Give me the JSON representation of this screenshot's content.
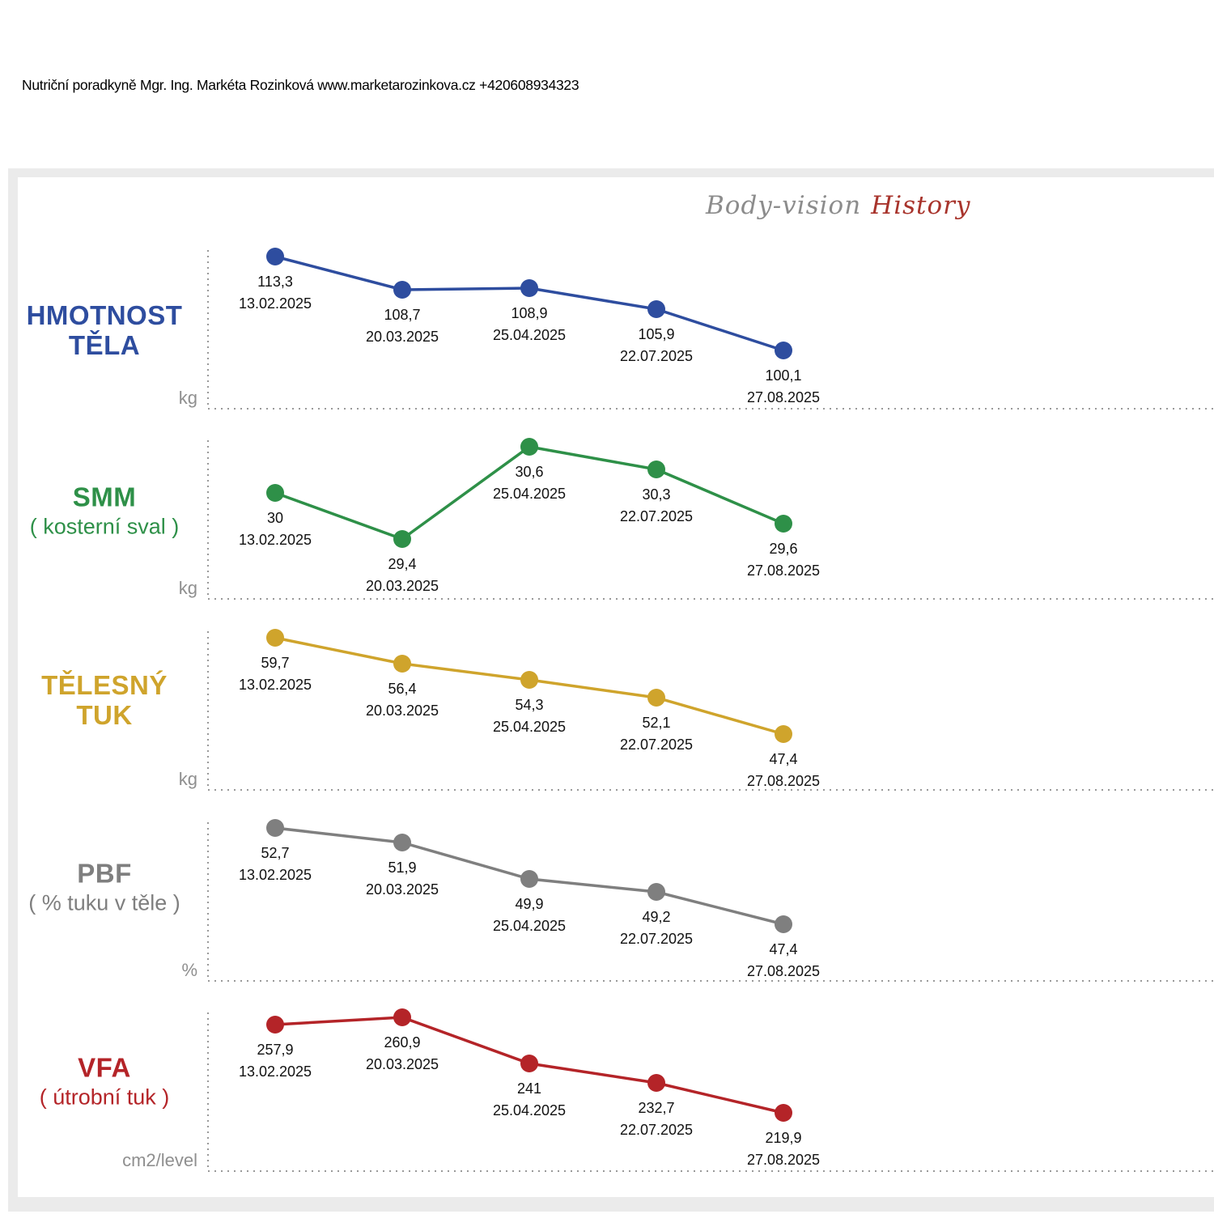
{
  "header": {
    "credit_line": "Nutriční poradkyně Mgr. Ing. Markéta Rozinková www.marketarozinkova.cz +420608934323"
  },
  "report_title": {
    "brand": "Body-vision",
    "section": "History",
    "brand_color": "#8c8c8c",
    "section_color": "#a8342c"
  },
  "axis": {
    "color": "#999999",
    "unit_label_color": "#8f8f8f"
  },
  "chart_data": [
    {
      "type": "line",
      "id": "hmotnost-tela",
      "title_lines": [
        "HMOTNOST",
        "TĚLA"
      ],
      "subtitle": null,
      "unit": "kg",
      "color": "#2e4d9f",
      "categories": [
        "13.02.2025",
        "20.03.2025",
        "25.04.2025",
        "22.07.2025",
        "27.08.2025"
      ],
      "values": [
        113.3,
        108.7,
        108.9,
        105.9,
        100.1
      ],
      "value_labels": [
        "113,3",
        "108,7",
        "108,9",
        "105,9",
        "100,1"
      ],
      "ylim": [
        92,
        114.2
      ],
      "grid": false,
      "legend": null
    },
    {
      "type": "line",
      "id": "smm",
      "title_lines": [
        "SMM"
      ],
      "subtitle": "( kosterní sval )",
      "unit": "kg",
      "color": "#2e9048",
      "categories": [
        "13.02.2025",
        "20.03.2025",
        "25.04.2025",
        "22.07.2025",
        "27.08.2025"
      ],
      "values": [
        30,
        29.4,
        30.6,
        30.3,
        29.6
      ],
      "value_labels": [
        "30",
        "29,4",
        "30,6",
        "30,3",
        "29,6"
      ],
      "ylim": [
        28.63,
        30.68
      ],
      "grid": false,
      "legend": null
    },
    {
      "type": "line",
      "id": "telesny-tuk",
      "title_lines": [
        "TĚLESNÝ",
        "TUK"
      ],
      "subtitle": null,
      "unit": "kg",
      "color": "#cfa42c",
      "categories": [
        "13.02.2025",
        "20.03.2025",
        "25.04.2025",
        "22.07.2025",
        "27.08.2025"
      ],
      "values": [
        59.7,
        56.4,
        54.3,
        52.1,
        47.4
      ],
      "value_labels": [
        "59,7",
        "56,4",
        "54,3",
        "52,1",
        "47,4"
      ],
      "ylim": [
        40.3,
        60.5
      ],
      "grid": false,
      "legend": null
    },
    {
      "type": "line",
      "id": "pbf",
      "title_lines": [
        "PBF"
      ],
      "subtitle": "( % tuku v těle )",
      "unit": "%",
      "color": "#7f7f7f",
      "categories": [
        "13.02.2025",
        "20.03.2025",
        "25.04.2025",
        "22.07.2025",
        "27.08.2025"
      ],
      "values": [
        52.7,
        51.9,
        49.9,
        49.2,
        47.4
      ],
      "value_labels": [
        "52,7",
        "51,9",
        "49,9",
        "49,2",
        "47,4"
      ],
      "ylim": [
        44.3,
        53.0
      ],
      "grid": false,
      "legend": null
    },
    {
      "type": "line",
      "id": "vfa",
      "title_lines": [
        "VFA"
      ],
      "subtitle": "( útrobní tuk )",
      "unit": "cm2/level",
      "color": "#b42428",
      "categories": [
        "13.02.2025",
        "20.03.2025",
        "25.04.2025",
        "22.07.2025",
        "27.08.2025"
      ],
      "values": [
        257.9,
        260.9,
        241,
        232.7,
        219.9
      ],
      "value_labels": [
        "257,9",
        "260,9",
        "241",
        "232,7",
        "219,9"
      ],
      "ylim": [
        195,
        263
      ],
      "grid": false,
      "legend": null
    }
  ]
}
